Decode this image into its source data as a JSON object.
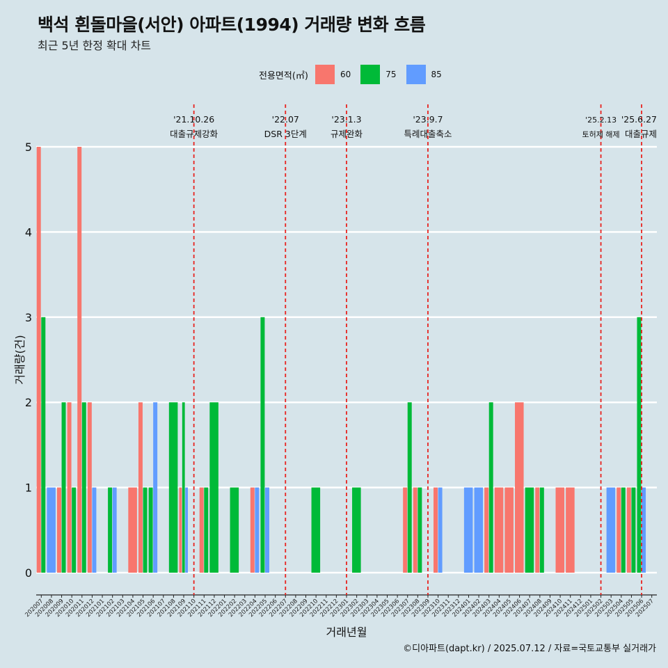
{
  "header": {
    "title": "백석 흰돌마을(서안) 아파트(1994) 거래량 변화 흐름",
    "subtitle": "최근 5년 한정 확대 차트"
  },
  "legend": {
    "title": "전용면적(㎡)",
    "items": [
      {
        "label": "60",
        "color": "#F8766D"
      },
      {
        "label": "75",
        "color": "#00BA38"
      },
      {
        "label": "85",
        "color": "#619CFF"
      }
    ]
  },
  "caption": "©디아파트(dapt.kr) / 2025.07.12 / 자료=국토교통부 실거래가",
  "chart_data": {
    "type": "bar",
    "xlabel": "거래년월",
    "ylabel": "거래량(건)",
    "ylim": [
      0,
      5
    ],
    "yticks": [
      0,
      1,
      2,
      3,
      4,
      5
    ],
    "grid": true,
    "legend_position": "top",
    "categories": [
      "202007",
      "202008",
      "202009",
      "202010",
      "202011",
      "202012",
      "202101",
      "202102",
      "202103",
      "202104",
      "202105",
      "202106",
      "202107",
      "202108",
      "202109",
      "202110",
      "202111",
      "202112",
      "202201",
      "202202",
      "202203",
      "202204",
      "202205",
      "202206",
      "202207",
      "202208",
      "202209",
      "202210",
      "202211",
      "202212",
      "202301",
      "202302",
      "202303",
      "202304",
      "202305",
      "202306",
      "202307",
      "202308",
      "202309",
      "202310",
      "202311",
      "202312",
      "202401",
      "202402",
      "202403",
      "202404",
      "202405",
      "202406",
      "202407",
      "202408",
      "202409",
      "202410",
      "202411",
      "202412",
      "202501",
      "202502",
      "202503",
      "202504",
      "202505",
      "202506",
      "202507"
    ],
    "series": [
      {
        "name": "60",
        "color": "#F8766D",
        "values": [
          5,
          0,
          1,
          2,
          5,
          2,
          0,
          0,
          0,
          1,
          2,
          0,
          0,
          0,
          1,
          0,
          1,
          0,
          0,
          0,
          0,
          1,
          0,
          0,
          0,
          0,
          0,
          0,
          0,
          0,
          0,
          0,
          0,
          0,
          0,
          0,
          1,
          1,
          0,
          1,
          0,
          0,
          0,
          0,
          1,
          1,
          1,
          2,
          0,
          1,
          0,
          1,
          1,
          0,
          0,
          0,
          0,
          1,
          1,
          0,
          0
        ]
      },
      {
        "name": "75",
        "color": "#00BA38",
        "values": [
          3,
          0,
          2,
          1,
          2,
          0,
          0,
          1,
          0,
          0,
          1,
          1,
          0,
          2,
          2,
          0,
          1,
          2,
          0,
          1,
          0,
          0,
          3,
          0,
          0,
          0,
          0,
          1,
          0,
          0,
          0,
          1,
          0,
          0,
          0,
          0,
          2,
          1,
          0,
          0,
          0,
          0,
          0,
          0,
          2,
          0,
          0,
          0,
          1,
          1,
          0,
          0,
          0,
          0,
          0,
          0,
          0,
          1,
          1,
          3,
          0
        ]
      },
      {
        "name": "85",
        "color": "#619CFF",
        "values": [
          0,
          1,
          0,
          0,
          0,
          1,
          0,
          1,
          0,
          0,
          0,
          2,
          0,
          0,
          1,
          0,
          0,
          0,
          0,
          0,
          0,
          1,
          1,
          0,
          0,
          0,
          0,
          0,
          0,
          0,
          0,
          0,
          0,
          0,
          0,
          0,
          0,
          0,
          0,
          1,
          0,
          0,
          1,
          1,
          0,
          0,
          0,
          0,
          0,
          0,
          0,
          0,
          0,
          0,
          0,
          0,
          1,
          0,
          0,
          1,
          0
        ]
      }
    ],
    "annotations": [
      {
        "x": "202110",
        "date": "'21.10.26",
        "label": "대출규제강화"
      },
      {
        "x": "202207",
        "date": "'22.07",
        "label": "DSR 3단계"
      },
      {
        "x": "202301",
        "date": "'23.1.3",
        "label": "규제완화"
      },
      {
        "x": "202309",
        "date": "'23.9.7",
        "label": "특례대출축소"
      },
      {
        "x": "202502",
        "date": "'25.2.13",
        "label": "토허제 해제"
      },
      {
        "x": "202506",
        "date": "'25.6.27",
        "label": "대출규제"
      }
    ]
  }
}
